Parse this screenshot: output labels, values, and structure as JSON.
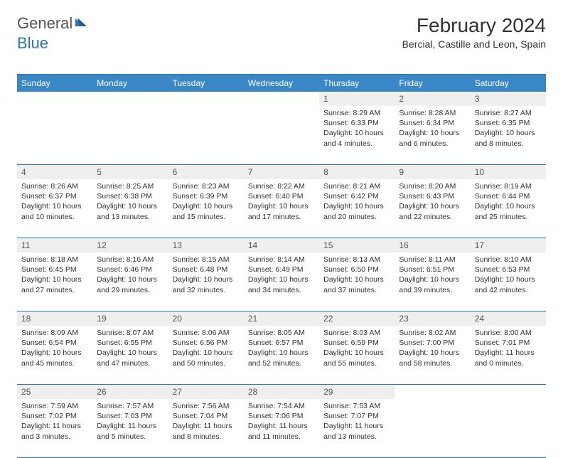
{
  "brand": {
    "part1": "General",
    "part2": "Blue"
  },
  "title": "February 2024",
  "location": "Bercial, Castille and Leon, Spain",
  "colors": {
    "header_bg": "#3a87c8",
    "header_text": "#ffffff",
    "rule": "#2976b6",
    "daynum_bg": "#efefef",
    "brand_general": "#555555",
    "brand_blue": "#2976b6",
    "body_text": "#333333"
  },
  "day_headers": [
    "Sunday",
    "Monday",
    "Tuesday",
    "Wednesday",
    "Thursday",
    "Friday",
    "Saturday"
  ],
  "weeks": [
    [
      null,
      null,
      null,
      null,
      {
        "n": "1",
        "sunrise": "8:29 AM",
        "sunset": "6:33 PM",
        "daylight": "10 hours and 4 minutes."
      },
      {
        "n": "2",
        "sunrise": "8:28 AM",
        "sunset": "6:34 PM",
        "daylight": "10 hours and 6 minutes."
      },
      {
        "n": "3",
        "sunrise": "8:27 AM",
        "sunset": "6:35 PM",
        "daylight": "10 hours and 8 minutes."
      }
    ],
    [
      {
        "n": "4",
        "sunrise": "8:26 AM",
        "sunset": "6:37 PM",
        "daylight": "10 hours and 10 minutes."
      },
      {
        "n": "5",
        "sunrise": "8:25 AM",
        "sunset": "6:38 PM",
        "daylight": "10 hours and 13 minutes."
      },
      {
        "n": "6",
        "sunrise": "8:23 AM",
        "sunset": "6:39 PM",
        "daylight": "10 hours and 15 minutes."
      },
      {
        "n": "7",
        "sunrise": "8:22 AM",
        "sunset": "6:40 PM",
        "daylight": "10 hours and 17 minutes."
      },
      {
        "n": "8",
        "sunrise": "8:21 AM",
        "sunset": "6:42 PM",
        "daylight": "10 hours and 20 minutes."
      },
      {
        "n": "9",
        "sunrise": "8:20 AM",
        "sunset": "6:43 PM",
        "daylight": "10 hours and 22 minutes."
      },
      {
        "n": "10",
        "sunrise": "8:19 AM",
        "sunset": "6:44 PM",
        "daylight": "10 hours and 25 minutes."
      }
    ],
    [
      {
        "n": "11",
        "sunrise": "8:18 AM",
        "sunset": "6:45 PM",
        "daylight": "10 hours and 27 minutes."
      },
      {
        "n": "12",
        "sunrise": "8:16 AM",
        "sunset": "6:46 PM",
        "daylight": "10 hours and 29 minutes."
      },
      {
        "n": "13",
        "sunrise": "8:15 AM",
        "sunset": "6:48 PM",
        "daylight": "10 hours and 32 minutes."
      },
      {
        "n": "14",
        "sunrise": "8:14 AM",
        "sunset": "6:49 PM",
        "daylight": "10 hours and 34 minutes."
      },
      {
        "n": "15",
        "sunrise": "8:13 AM",
        "sunset": "6:50 PM",
        "daylight": "10 hours and 37 minutes."
      },
      {
        "n": "16",
        "sunrise": "8:11 AM",
        "sunset": "6:51 PM",
        "daylight": "10 hours and 39 minutes."
      },
      {
        "n": "17",
        "sunrise": "8:10 AM",
        "sunset": "6:53 PM",
        "daylight": "10 hours and 42 minutes."
      }
    ],
    [
      {
        "n": "18",
        "sunrise": "8:09 AM",
        "sunset": "6:54 PM",
        "daylight": "10 hours and 45 minutes."
      },
      {
        "n": "19",
        "sunrise": "8:07 AM",
        "sunset": "6:55 PM",
        "daylight": "10 hours and 47 minutes."
      },
      {
        "n": "20",
        "sunrise": "8:06 AM",
        "sunset": "6:56 PM",
        "daylight": "10 hours and 50 minutes."
      },
      {
        "n": "21",
        "sunrise": "8:05 AM",
        "sunset": "6:57 PM",
        "daylight": "10 hours and 52 minutes."
      },
      {
        "n": "22",
        "sunrise": "8:03 AM",
        "sunset": "6:59 PM",
        "daylight": "10 hours and 55 minutes."
      },
      {
        "n": "23",
        "sunrise": "8:02 AM",
        "sunset": "7:00 PM",
        "daylight": "10 hours and 58 minutes."
      },
      {
        "n": "24",
        "sunrise": "8:00 AM",
        "sunset": "7:01 PM",
        "daylight": "11 hours and 0 minutes."
      }
    ],
    [
      {
        "n": "25",
        "sunrise": "7:59 AM",
        "sunset": "7:02 PM",
        "daylight": "11 hours and 3 minutes."
      },
      {
        "n": "26",
        "sunrise": "7:57 AM",
        "sunset": "7:03 PM",
        "daylight": "11 hours and 5 minutes."
      },
      {
        "n": "27",
        "sunrise": "7:56 AM",
        "sunset": "7:04 PM",
        "daylight": "11 hours and 8 minutes."
      },
      {
        "n": "28",
        "sunrise": "7:54 AM",
        "sunset": "7:06 PM",
        "daylight": "11 hours and 11 minutes."
      },
      {
        "n": "29",
        "sunrise": "7:53 AM",
        "sunset": "7:07 PM",
        "daylight": "11 hours and 13 minutes."
      },
      null,
      null
    ]
  ],
  "labels": {
    "sunrise": "Sunrise:",
    "sunset": "Sunset:",
    "daylight": "Daylight:"
  }
}
